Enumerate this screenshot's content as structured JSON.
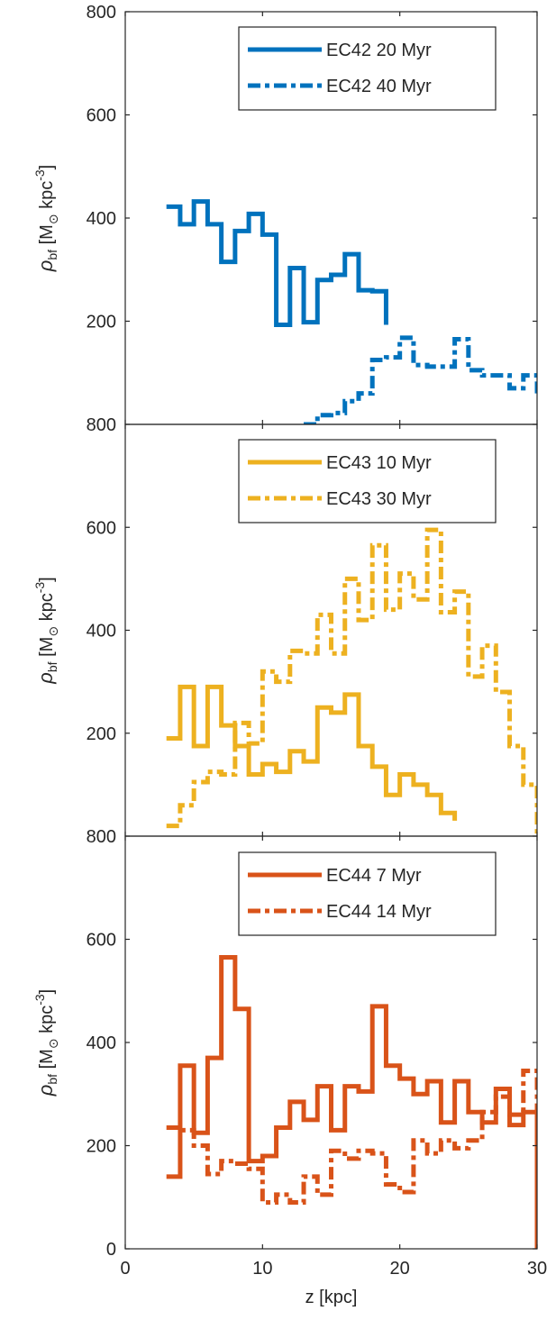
{
  "chart_data": [
    {
      "type": "line",
      "step": true,
      "xlim": [
        0,
        30
      ],
      "ylim": [
        0,
        800
      ],
      "yticks": [
        200,
        400,
        600,
        800
      ],
      "ylabel": "ρbf [M⊙ kpc-3]",
      "ylabel_parts": {
        "rho": "ρ",
        "rho_sub": "bf",
        "open": " [M",
        "sun": "⊙",
        "unit": " kpc",
        "exp": "-3",
        "close": "]"
      },
      "legend": "top-right",
      "series": [
        {
          "name": "EC42 20 Myr",
          "color": "#0072BD",
          "dash": "solid",
          "x": [
            3,
            4,
            5,
            6,
            7,
            8,
            9,
            10,
            11,
            12,
            13,
            14,
            15,
            16,
            17,
            18,
            19
          ],
          "y": [
            422,
            388,
            432,
            388,
            315,
            375,
            408,
            368,
            193,
            303,
            198,
            280,
            290,
            330,
            260,
            258,
            193
          ]
        },
        {
          "name": "EC42 40 Myr",
          "color": "#0072BD",
          "dash": "dashdot",
          "x": [
            13,
            14,
            15,
            16,
            17,
            18,
            19,
            20,
            21,
            22,
            23,
            24,
            25,
            26,
            27,
            28,
            29,
            30
          ],
          "y": [
            0,
            18,
            22,
            45,
            60,
            125,
            130,
            168,
            115,
            112,
            112,
            165,
            105,
            95,
            95,
            70,
            95,
            60
          ]
        }
      ]
    },
    {
      "type": "line",
      "step": true,
      "xlim": [
        0,
        30
      ],
      "ylim": [
        0,
        800
      ],
      "yticks": [
        200,
        400,
        600,
        800
      ],
      "ylabel": "ρbf [M⊙ kpc-3]",
      "ylabel_parts": {
        "rho": "ρ",
        "rho_sub": "bf",
        "open": " [M",
        "sun": "⊙",
        "unit": " kpc",
        "exp": "-3",
        "close": "]"
      },
      "legend": "top-right",
      "series": [
        {
          "name": "EC43 10 Myr",
          "color": "#EDB120",
          "dash": "solid",
          "x": [
            3,
            4,
            5,
            6,
            7,
            8,
            9,
            10,
            11,
            12,
            13,
            14,
            15,
            16,
            17,
            18,
            19,
            20,
            21,
            22,
            23,
            24
          ],
          "y": [
            190,
            290,
            175,
            290,
            215,
            175,
            120,
            140,
            125,
            165,
            145,
            250,
            240,
            275,
            175,
            135,
            80,
            120,
            100,
            80,
            45,
            30
          ]
        },
        {
          "name": "EC43 30 Myr",
          "color": "#EDB120",
          "dash": "dashdot",
          "x": [
            3,
            4,
            5,
            6,
            7,
            8,
            9,
            10,
            11,
            12,
            13,
            14,
            15,
            16,
            17,
            18,
            19,
            20,
            21,
            22,
            23,
            24,
            25,
            26,
            27,
            28,
            29,
            30
          ],
          "y": [
            20,
            60,
            105,
            125,
            120,
            220,
            180,
            320,
            300,
            360,
            355,
            430,
            355,
            500,
            420,
            565,
            440,
            510,
            460,
            595,
            435,
            475,
            310,
            370,
            280,
            175,
            100,
            0
          ]
        }
      ]
    },
    {
      "type": "line",
      "step": true,
      "xlim": [
        0,
        30
      ],
      "ylim": [
        0,
        800
      ],
      "yticks": [
        0,
        200,
        400,
        600,
        800
      ],
      "xticks": [
        0,
        10,
        20,
        30
      ],
      "xlabel": "z [kpc]",
      "ylabel": "ρbf [M⊙ kpc-3]",
      "ylabel_parts": {
        "rho": "ρ",
        "rho_sub": "bf",
        "open": " [M",
        "sun": "⊙",
        "unit": " kpc",
        "exp": "-3",
        "close": "]"
      },
      "legend": "top-right",
      "series": [
        {
          "name": "EC44 7 Myr",
          "color": "#D95319",
          "dash": "solid",
          "x": [
            3,
            4,
            5,
            6,
            7,
            8,
            9,
            10,
            11,
            12,
            13,
            14,
            15,
            16,
            17,
            18,
            19,
            20,
            21,
            22,
            23,
            24,
            25,
            26,
            27,
            28,
            29,
            30
          ],
          "y": [
            140,
            355,
            225,
            370,
            565,
            465,
            170,
            180,
            235,
            285,
            250,
            315,
            230,
            315,
            305,
            470,
            355,
            330,
            300,
            325,
            245,
            325,
            265,
            245,
            310,
            240,
            265,
            0
          ]
        },
        {
          "name": "EC44 14 Myr",
          "color": "#D95319",
          "dash": "dashdot",
          "x": [
            3,
            4,
            5,
            6,
            7,
            8,
            9,
            10,
            11,
            12,
            13,
            14,
            15,
            16,
            17,
            18,
            19,
            20,
            21,
            22,
            23,
            24,
            25,
            26,
            27,
            28,
            29,
            30
          ],
          "y": [
            235,
            230,
            200,
            145,
            170,
            165,
            155,
            90,
            105,
            90,
            140,
            105,
            190,
            175,
            190,
            185,
            125,
            110,
            210,
            185,
            210,
            195,
            210,
            265,
            295,
            260,
            345,
            60
          ]
        }
      ]
    }
  ]
}
